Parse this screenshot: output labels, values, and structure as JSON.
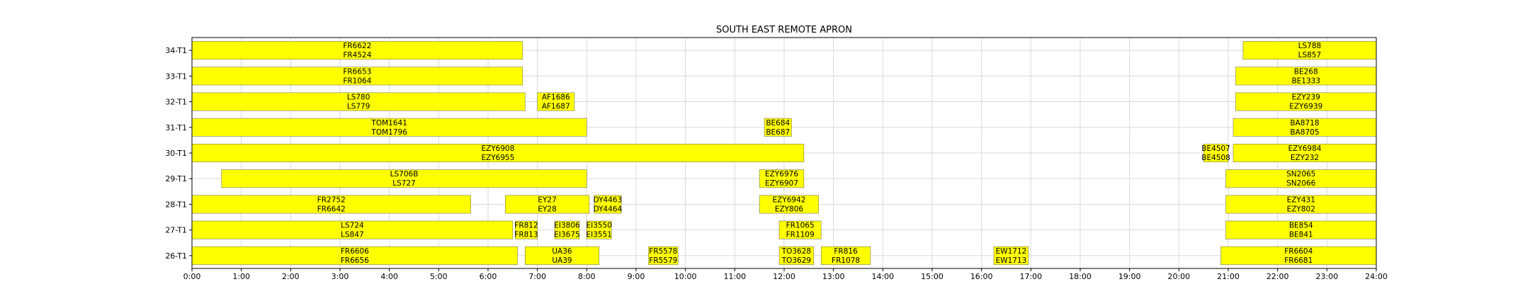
{
  "chart_data": {
    "type": "bar",
    "subtype": "gantt",
    "title": "SOUTH EAST REMOTE APRON",
    "x_ticks": [
      "0:00",
      "1:00",
      "2:00",
      "3:00",
      "4:00",
      "5:00",
      "6:00",
      "7:00",
      "8:00",
      "9:00",
      "10:00",
      "11:00",
      "12:00",
      "13:00",
      "14:00",
      "15:00",
      "16:00",
      "17:00",
      "18:00",
      "19:00",
      "20:00",
      "21:00",
      "22:00",
      "23:00",
      "24:00"
    ],
    "x_range_hours": [
      0,
      24
    ],
    "grid": true,
    "bar_color": "#ffff00",
    "rows": [
      {
        "stand": "34-T1",
        "flights": [
          {
            "start": 0.0,
            "end": 6.7,
            "arr": "FR6622",
            "dep": "FR4524"
          },
          {
            "start": 21.3,
            "end": 24.0,
            "arr": "LS788",
            "dep": "LS857"
          }
        ]
      },
      {
        "stand": "33-T1",
        "flights": [
          {
            "start": 0.0,
            "end": 6.7,
            "arr": "FR6653",
            "dep": "FR1064"
          },
          {
            "start": 21.15,
            "end": 24.0,
            "arr": "BE268",
            "dep": "BE1333"
          }
        ]
      },
      {
        "stand": "32-T1",
        "flights": [
          {
            "start": 0.0,
            "end": 6.75,
            "arr": "LS780",
            "dep": "LS779"
          },
          {
            "start": 7.0,
            "end": 7.75,
            "arr": "AF1686",
            "dep": "AF1687"
          },
          {
            "start": 21.15,
            "end": 24.0,
            "arr": "EZY239",
            "dep": "EZY6939"
          }
        ]
      },
      {
        "stand": "31-T1",
        "flights": [
          {
            "start": 0.0,
            "end": 8.0,
            "arr": "TOM1641",
            "dep": "TOM1796"
          },
          {
            "start": 11.6,
            "end": 12.15,
            "arr": "BE684",
            "dep": "BE687"
          },
          {
            "start": 21.1,
            "end": 24.0,
            "arr": "BA8718",
            "dep": "BA8705"
          }
        ]
      },
      {
        "stand": "30-T1",
        "flights": [
          {
            "start": 0.0,
            "end": 12.4,
            "arr": "EZY6908",
            "dep": "EZY6955"
          },
          {
            "start": 20.5,
            "end": 21.0,
            "arr": "BE4507",
            "dep": "BE4508"
          },
          {
            "start": 21.1,
            "end": 24.0,
            "arr": "EZY6984",
            "dep": "EZY232"
          }
        ]
      },
      {
        "stand": "29-T1",
        "flights": [
          {
            "start": 0.6,
            "end": 8.0,
            "arr": "LS706B",
            "dep": "LS727"
          },
          {
            "start": 11.5,
            "end": 12.4,
            "arr": "EZY6976",
            "dep": "EZY6907"
          },
          {
            "start": 20.95,
            "end": 24.0,
            "arr": "SN2065",
            "dep": "SN2066"
          }
        ]
      },
      {
        "stand": "28-T1",
        "flights": [
          {
            "start": 0.0,
            "end": 5.65,
            "arr": "FR2752",
            "dep": "FR6642"
          },
          {
            "start": 6.35,
            "end": 8.05,
            "arr": "EY27",
            "dep": "EY28"
          },
          {
            "start": 8.15,
            "end": 8.7,
            "arr": "DY4463",
            "dep": "DY4464"
          },
          {
            "start": 11.5,
            "end": 12.7,
            "arr": "EZY6942",
            "dep": "EZY806"
          },
          {
            "start": 20.95,
            "end": 24.0,
            "arr": "EZY431",
            "dep": "EZY802"
          }
        ]
      },
      {
        "stand": "27-T1",
        "flights": [
          {
            "start": 0.0,
            "end": 6.5,
            "arr": "LS724",
            "dep": "LS847"
          },
          {
            "start": 6.55,
            "end": 7.0,
            "arr": "FR812",
            "dep": "FR813"
          },
          {
            "start": 7.35,
            "end": 7.85,
            "arr": "EI3806",
            "dep": "EI3675"
          },
          {
            "start": 8.0,
            "end": 8.5,
            "arr": "EI3550",
            "dep": "EI3551"
          },
          {
            "start": 11.9,
            "end": 12.75,
            "arr": "FR1065",
            "dep": "FR1109"
          },
          {
            "start": 20.95,
            "end": 24.0,
            "arr": "BE854",
            "dep": "BE841"
          }
        ]
      },
      {
        "stand": "26-T1",
        "flights": [
          {
            "start": 0.0,
            "end": 6.6,
            "arr": "FR6606",
            "dep": "FR6656"
          },
          {
            "start": 6.75,
            "end": 8.25,
            "arr": "UA36",
            "dep": "UA39"
          },
          {
            "start": 9.25,
            "end": 9.85,
            "arr": "FR5578",
            "dep": "FR5579"
          },
          {
            "start": 11.9,
            "end": 12.6,
            "arr": "TO3628",
            "dep": "TO3629"
          },
          {
            "start": 12.75,
            "end": 13.75,
            "arr": "FR816",
            "dep": "FR1078"
          },
          {
            "start": 16.25,
            "end": 16.95,
            "arr": "EW1712",
            "dep": "EW1713"
          },
          {
            "start": 20.85,
            "end": 24.0,
            "arr": "FR6604",
            "dep": "FR6681"
          }
        ]
      }
    ]
  }
}
